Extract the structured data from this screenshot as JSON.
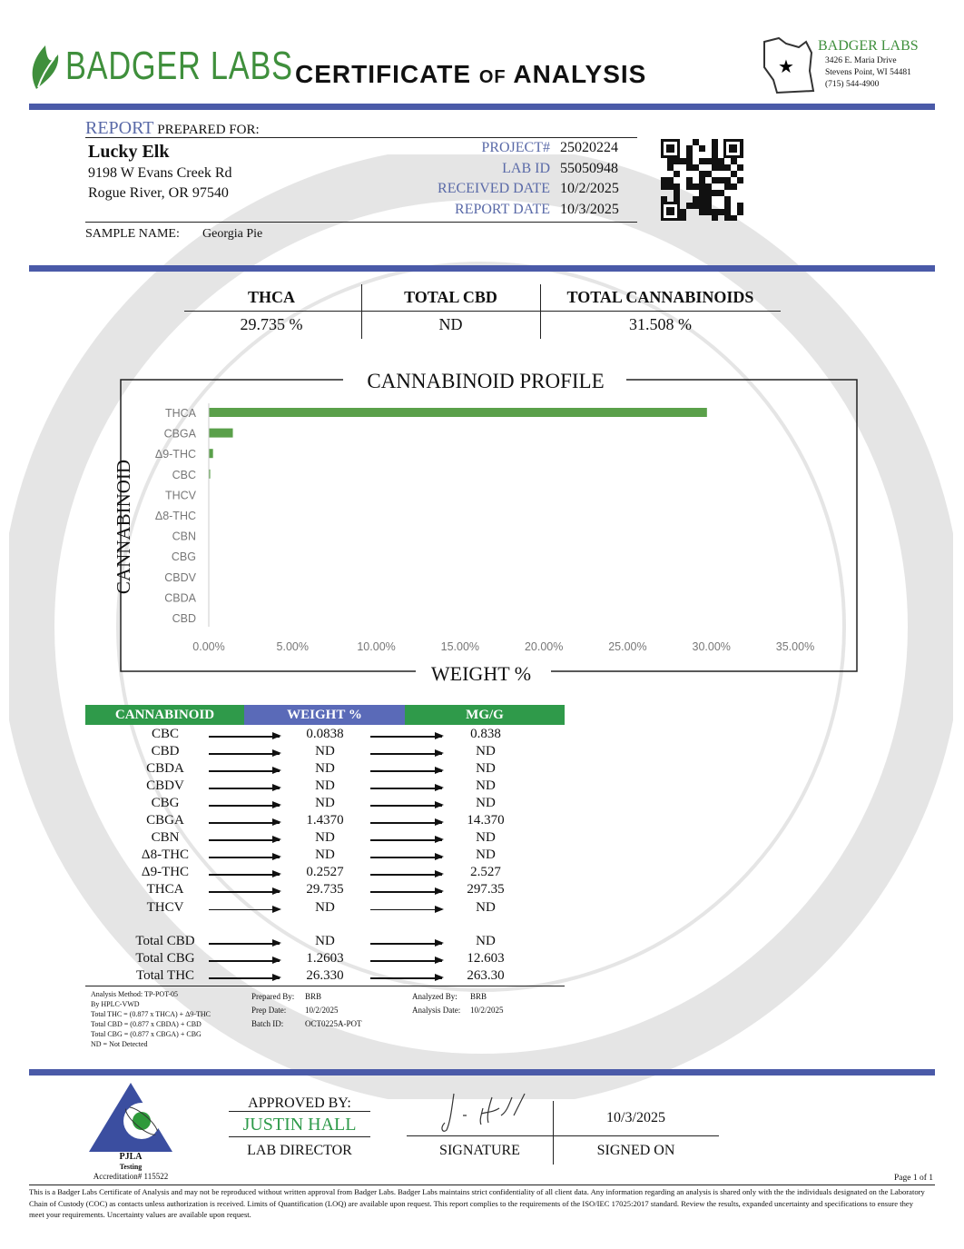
{
  "header": {
    "logo_text": "BADGER LABS",
    "title_1": "CERTIFICATE",
    "title_of": "OF",
    "title_2": "ANALYSIS",
    "lab_name": "BADGER LABS",
    "address_1": "3426 E. Maria Drive",
    "address_2": "Stevens Point, WI 54481",
    "phone": "(715) 544-4900"
  },
  "client": {
    "report_label": "REPORT",
    "prepared_for": "PREPARED FOR:",
    "name": "Lucky Elk",
    "address_1": "9198 W Evans Creek Rd",
    "address_2": "Rogue River, OR 97540",
    "sample_label": "SAMPLE NAME:",
    "sample_name": "Georgia Pie"
  },
  "meta": [
    {
      "label": "PROJECT#",
      "value": "25020224"
    },
    {
      "label": "LAB ID",
      "value": "55050948"
    },
    {
      "label": "RECEIVED DATE",
      "value": "10/2/2025"
    },
    {
      "label": "REPORT DATE",
      "value": "10/3/2025"
    }
  ],
  "summary": [
    {
      "label": "THCA",
      "value": "29.735 %"
    },
    {
      "label": "TOTAL CBD",
      "value": "ND"
    },
    {
      "label": "TOTAL CANNABINOIDS",
      "value": "31.508 %"
    }
  ],
  "chart_data": {
    "type": "bar",
    "orientation": "horizontal",
    "title": "CANNABINOID PROFILE",
    "xlabel": "WEIGHT %",
    "ylabel": "CANNABINOID",
    "categories": [
      "THCA",
      "CBGA",
      "Δ9-THC",
      "CBC",
      "THCV",
      "Δ8-THC",
      "CBN",
      "CBG",
      "CBDV",
      "CBDA",
      "CBD"
    ],
    "values": [
      29.735,
      1.437,
      0.2527,
      0.0838,
      0,
      0,
      0,
      0,
      0,
      0,
      0
    ],
    "xlim": [
      0,
      35
    ],
    "xticks": [
      "0.00%",
      "5.00%",
      "10.00%",
      "15.00%",
      "20.00%",
      "25.00%",
      "30.00%",
      "35.00%"
    ],
    "grid": false,
    "bar_color": "#5aa04a"
  },
  "table": {
    "headers": [
      "CANNABINOID",
      "WEIGHT %",
      "MG/G"
    ],
    "header_colors": [
      "#2f9a4a",
      "#5a6ab8",
      "#2f9a4a"
    ],
    "rows": [
      [
        "CBC",
        "0.0838",
        "0.838"
      ],
      [
        "CBD",
        "ND",
        "ND"
      ],
      [
        "CBDA",
        "ND",
        "ND"
      ],
      [
        "CBDV",
        "ND",
        "ND"
      ],
      [
        "CBG",
        "ND",
        "ND"
      ],
      [
        "CBGA",
        "1.4370",
        "14.370"
      ],
      [
        "CBN",
        "ND",
        "ND"
      ],
      [
        "Δ8-THC",
        "ND",
        "ND"
      ],
      [
        "Δ9-THC",
        "0.2527",
        "2.527"
      ],
      [
        "THCA",
        "29.735",
        "297.35"
      ],
      [
        "THCV",
        "ND",
        "ND"
      ]
    ],
    "totals": [
      [
        "Total CBD",
        "ND",
        "ND"
      ],
      [
        "Total CBG",
        "1.2603",
        "12.603"
      ],
      [
        "Total THC",
        "26.330",
        "263.30"
      ]
    ]
  },
  "notes": {
    "method": [
      "Analysis Method: TP-POT-05",
      "By HPLC-VWD",
      "Total THC = (0.877 x  THCA) + Δ9-THC",
      "Total CBD = (0.877 x  CBDA) + CBD",
      "Total CBG = (0.877 x  CBGA) + CBG",
      "ND = Not Detected"
    ],
    "prepared_by_label": "Prepared By:",
    "prepared_by": "BRB",
    "prep_date_label": "Prep Date:",
    "prep_date": "10/2/2025",
    "batch_label": "Batch ID:",
    "batch": "OCT0225A-POT",
    "analyzed_by_label": "Analyzed By:",
    "analyzed_by": "BRB",
    "analysis_date_label": "Analysis Date:",
    "analysis_date": "10/2/2025"
  },
  "approval": {
    "approved_by": "APPROVED BY:",
    "name": "JUSTIN HALL",
    "role": "LAB DIRECTOR",
    "signature_label": "SIGNATURE",
    "signed_date": "10/3/2025",
    "signed_on_label": "SIGNED ON",
    "pjla": "PJLA",
    "pjla_sub": "Testing",
    "accreditation": "Accreditation# 115522"
  },
  "footer": {
    "page": "Page 1 of 1",
    "disclaimer": "This is a Badger Labs Certificate of Analysis and may not be reproduced without written approval from Badger Labs. Badger Labs maintains strict confidentiality of all client data. Any information regarding an analysis is shared only with the the individuals designated on the Laboratory Chain of Custody (COC) as contacts unless authorization is received. Limits of Quantification (LOQ) are available upon request. This report complies to the requirements of the ISO/IEC 17025:2017 standard. Review the results, expanded uncertainty and specifications to ensure they meet your requirements. Uncertainty values are available upon request."
  }
}
